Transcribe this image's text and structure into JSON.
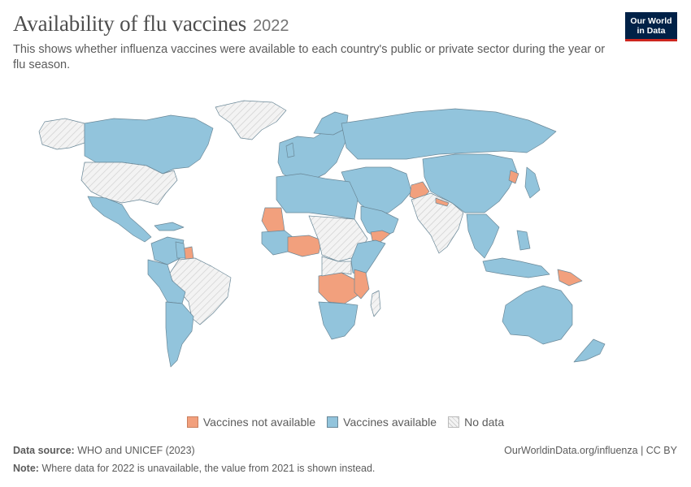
{
  "header": {
    "title": "Availability of flu vaccines",
    "year": "2022",
    "subtitle": "This shows whether influenza vaccines were available to each country's public or private sector during the year or flu season."
  },
  "logo": {
    "line1": "Our World",
    "line2": "in Data"
  },
  "colors": {
    "available": "#92c4dc",
    "not_available": "#f2a07d",
    "no_data": "#f0f0f0",
    "border": "#5a7a8c"
  },
  "legend": [
    {
      "key": "not_available",
      "label": "Vaccines not available"
    },
    {
      "key": "available",
      "label": "Vaccines available"
    },
    {
      "key": "no_data",
      "label": "No data"
    }
  ],
  "footer": {
    "source_label": "Data source:",
    "source_text": "WHO and UNICEF (2023)",
    "note_label": "Note:",
    "note_text": "Where data for 2022 is unavailable, the value from 2021 is shown instead.",
    "link": "OurWorldinData.org/influenza | CC BY"
  },
  "chart_data": {
    "type": "choropleth",
    "categories": [
      "Vaccines not available",
      "Vaccines available",
      "No data"
    ],
    "regions": [
      {
        "region": "Canada",
        "value": "Vaccines available"
      },
      {
        "region": "United States",
        "value": "No data"
      },
      {
        "region": "Greenland",
        "value": "No data"
      },
      {
        "region": "Mexico",
        "value": "Vaccines available"
      },
      {
        "region": "Brazil",
        "value": "No data"
      },
      {
        "region": "Argentina",
        "value": "Vaccines available"
      },
      {
        "region": "Chile",
        "value": "Vaccines available"
      },
      {
        "region": "Peru",
        "value": "Vaccines available"
      },
      {
        "region": "Colombia",
        "value": "Vaccines available"
      },
      {
        "region": "Venezuela",
        "value": "Vaccines available"
      },
      {
        "region": "Suriname",
        "value": "Vaccines not available"
      },
      {
        "region": "Europe",
        "value": "Vaccines available"
      },
      {
        "region": "Russia",
        "value": "Vaccines available"
      },
      {
        "region": "China",
        "value": "Vaccines available"
      },
      {
        "region": "India",
        "value": "No data"
      },
      {
        "region": "Afghanistan",
        "value": "Vaccines not available"
      },
      {
        "region": "Nepal",
        "value": "Vaccines not available"
      },
      {
        "region": "North Korea",
        "value": "Vaccines not available"
      },
      {
        "region": "Japan",
        "value": "Vaccines available"
      },
      {
        "region": "Australia",
        "value": "Vaccines available"
      },
      {
        "region": "New Zealand",
        "value": "Vaccines available"
      },
      {
        "region": "Papua New Guinea",
        "value": "Vaccines not available"
      },
      {
        "region": "Mauritania",
        "value": "Vaccines not available"
      },
      {
        "region": "Burkina Faso",
        "value": "Vaccines not available"
      },
      {
        "region": "Nigeria",
        "value": "Vaccines not available"
      },
      {
        "region": "Yemen",
        "value": "Vaccines not available"
      },
      {
        "region": "Angola",
        "value": "Vaccines not available"
      },
      {
        "region": "Zambia",
        "value": "Vaccines not available"
      },
      {
        "region": "Mozambique",
        "value": "Vaccines not available"
      },
      {
        "region": "Lesotho",
        "value": "Vaccines not available"
      },
      {
        "region": "Algeria",
        "value": "Vaccines available"
      },
      {
        "region": "Egypt",
        "value": "Vaccines available"
      },
      {
        "region": "South Africa",
        "value": "Vaccines available"
      },
      {
        "region": "Kenya",
        "value": "Vaccines available"
      },
      {
        "region": "Saudi Arabia",
        "value": "Vaccines available"
      },
      {
        "region": "Iran",
        "value": "Vaccines available"
      }
    ]
  }
}
